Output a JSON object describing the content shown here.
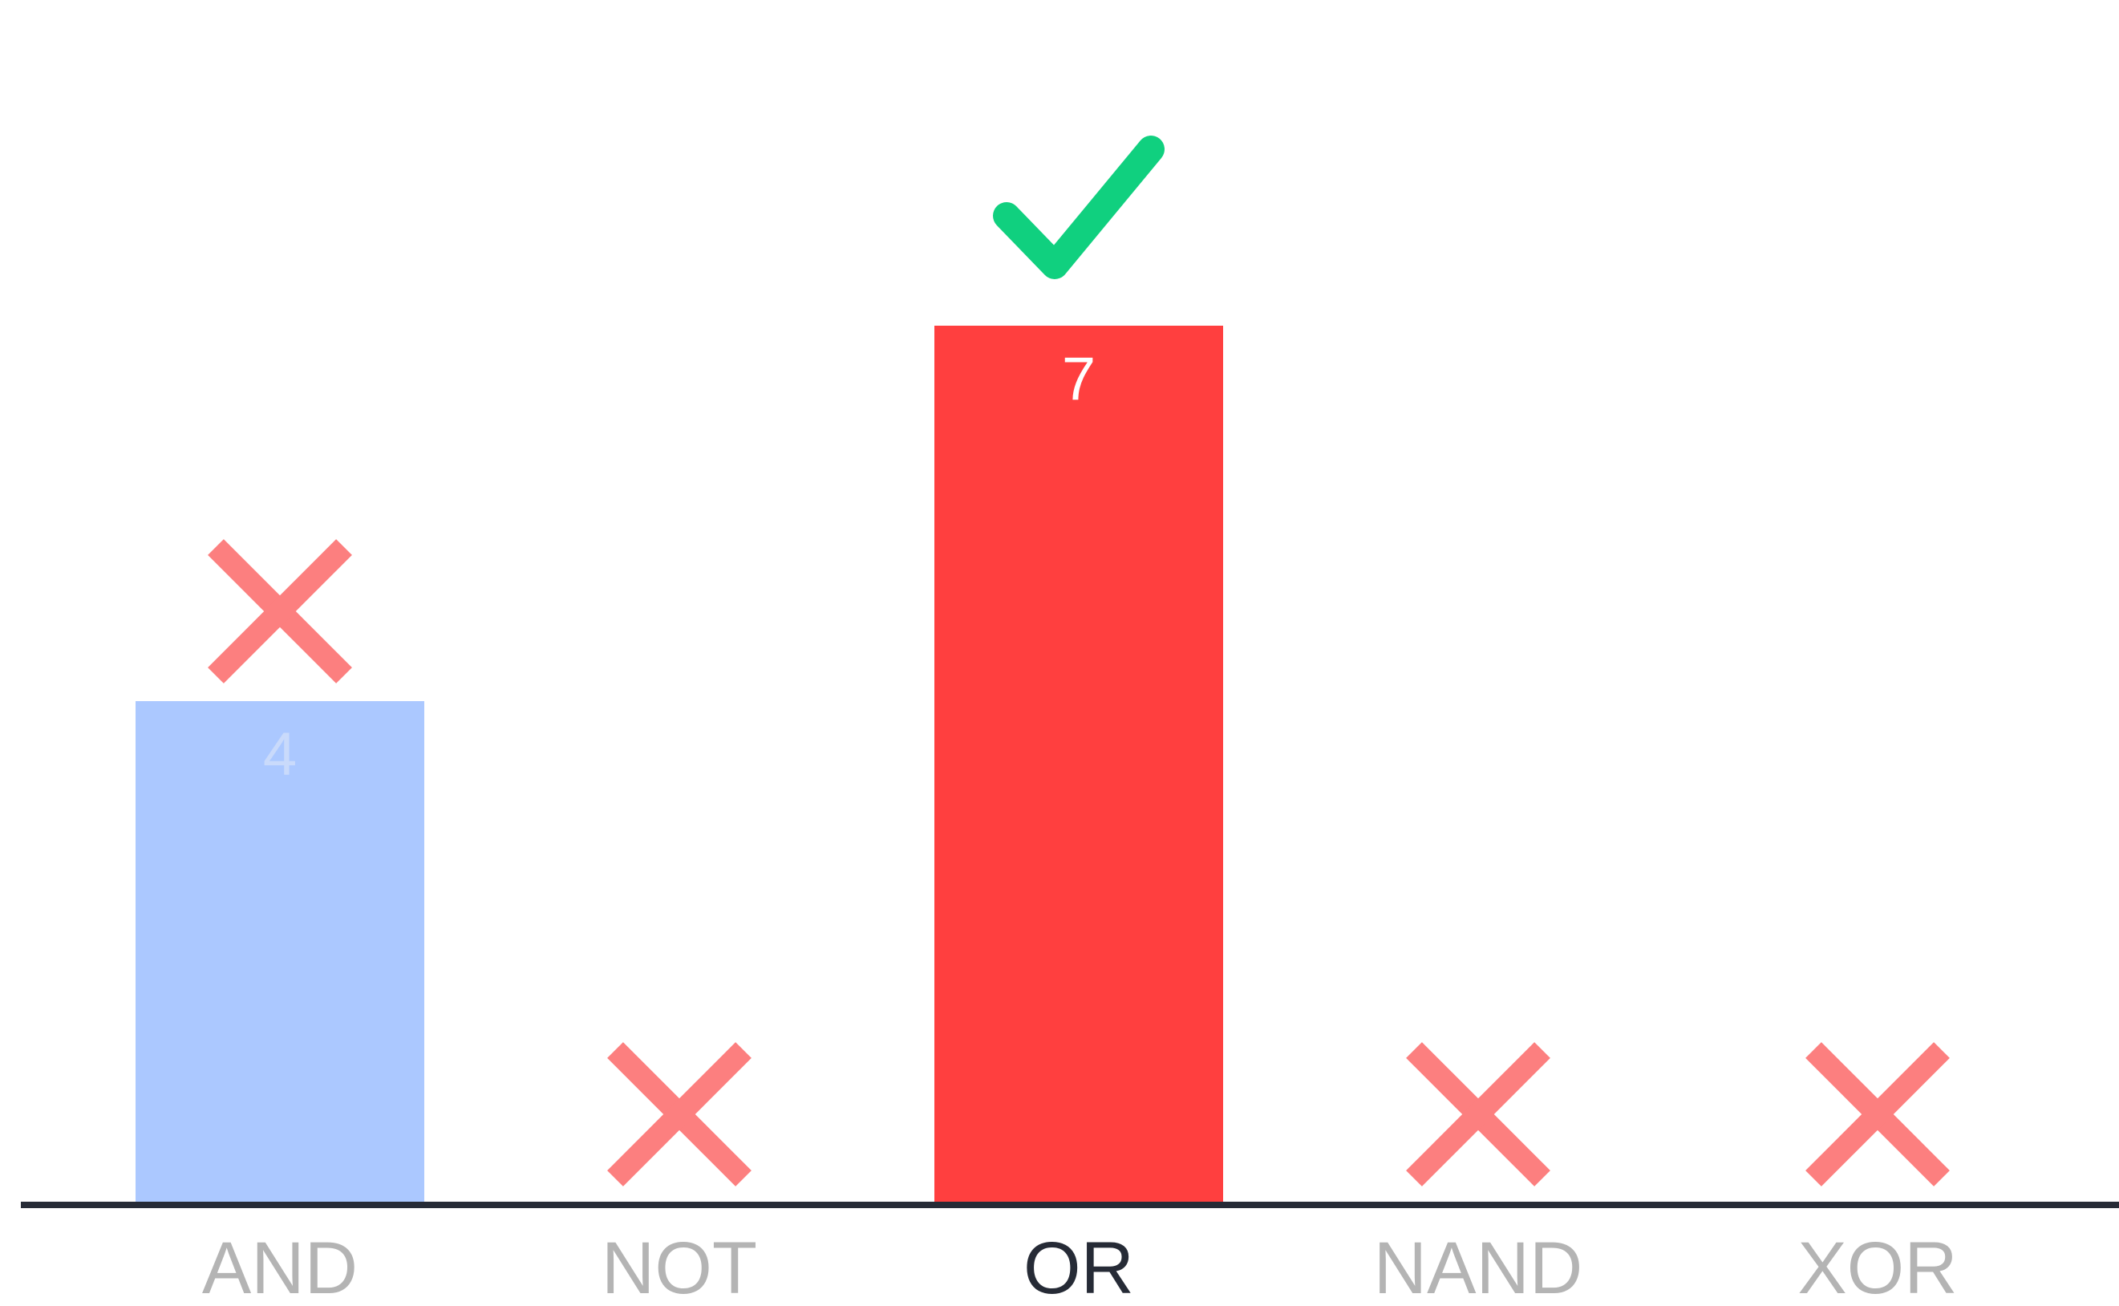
{
  "chart_data": {
    "type": "bar",
    "categories": [
      "AND",
      "NOT",
      "OR",
      "NAND",
      "XOR"
    ],
    "values": [
      4,
      0,
      7,
      0,
      0
    ],
    "value_labels": [
      "4",
      "",
      "7",
      "",
      ""
    ],
    "correct_index": 2,
    "markers": [
      "cross-icon",
      "cross-icon",
      "check-icon",
      "cross-icon",
      "cross-icon"
    ],
    "title": "",
    "xlabel": "",
    "ylabel": "",
    "ylim": [
      0,
      8
    ],
    "grid": false,
    "legend": "none"
  },
  "colors": {
    "bar_default": "#abc8ff",
    "bar_correct": "#ff3f3f",
    "value_label_default": "#c9dafb",
    "value_label_correct": "#ffffff",
    "cross": "#fc7f7f",
    "check": "#10d07f",
    "axis": "#262b36",
    "label_default": "#b4b4b4",
    "label_correct": "#262b36"
  }
}
